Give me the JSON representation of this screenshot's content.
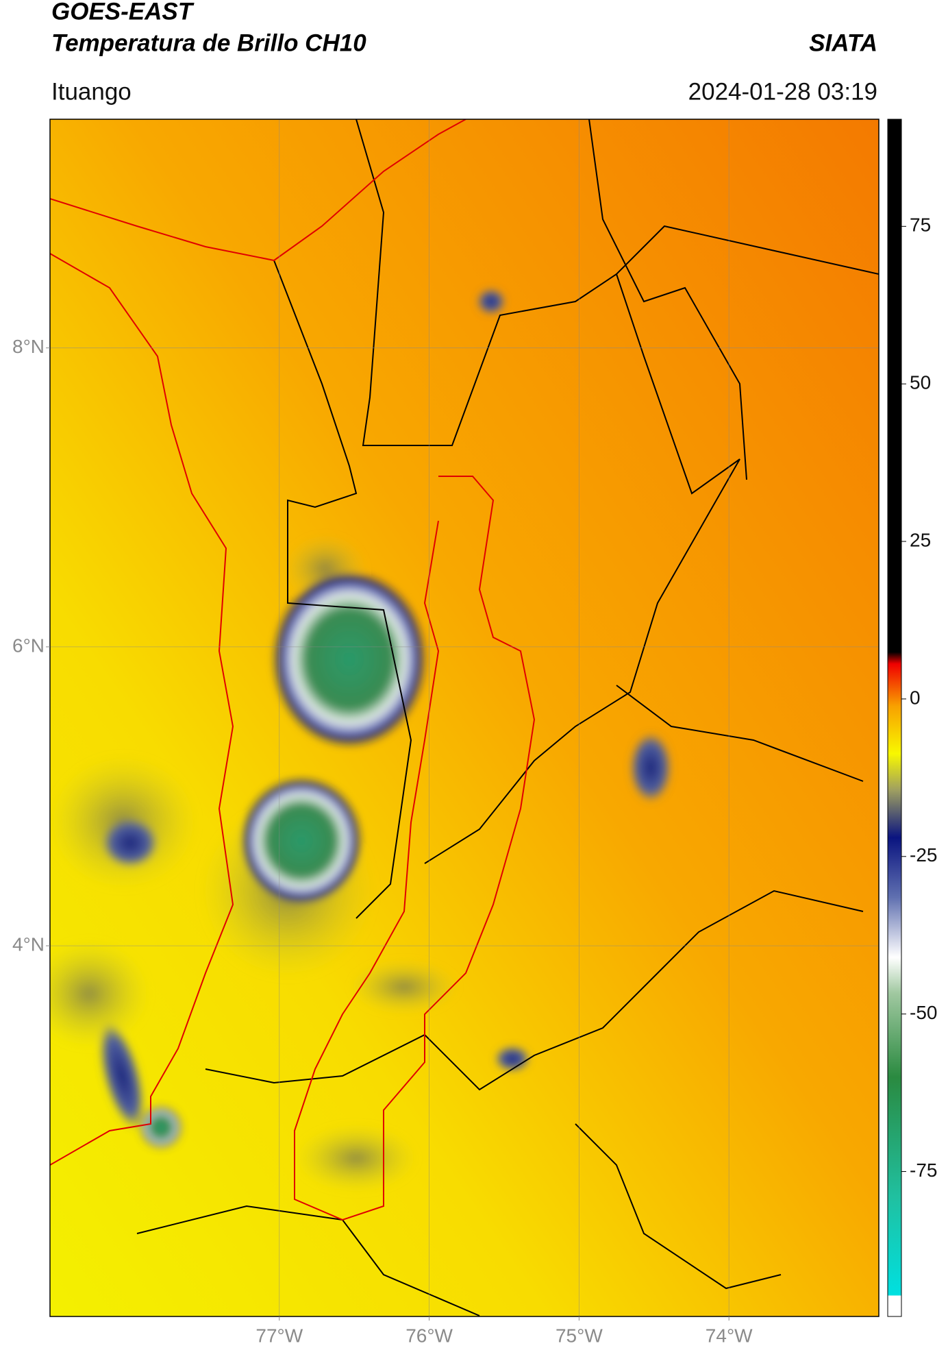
{
  "header": {
    "title": "GOES-EAST",
    "subtitle": "Temperatura de Brillo CH10",
    "source": "SIATA",
    "location": "Ituango",
    "datetime": "2024-01-28 03:19"
  },
  "map": {
    "xlim": [
      -78.53,
      -73.0
    ],
    "ylim": [
      1.52,
      9.53
    ],
    "xticks": [
      {
        "value": -77,
        "label": "77°W"
      },
      {
        "value": -76,
        "label": "76°W"
      },
      {
        "value": -75,
        "label": "75°W"
      },
      {
        "value": -74,
        "label": "74°W"
      }
    ],
    "yticks": [
      {
        "value": 8,
        "label": "8°N"
      },
      {
        "value": 6,
        "label": "6°N"
      },
      {
        "value": 4,
        "label": "4°N"
      }
    ]
  },
  "colorbar": {
    "lim": [
      -98,
      92
    ],
    "ticks": [
      75,
      50,
      25,
      0,
      -25,
      -50,
      -75
    ]
  }
}
